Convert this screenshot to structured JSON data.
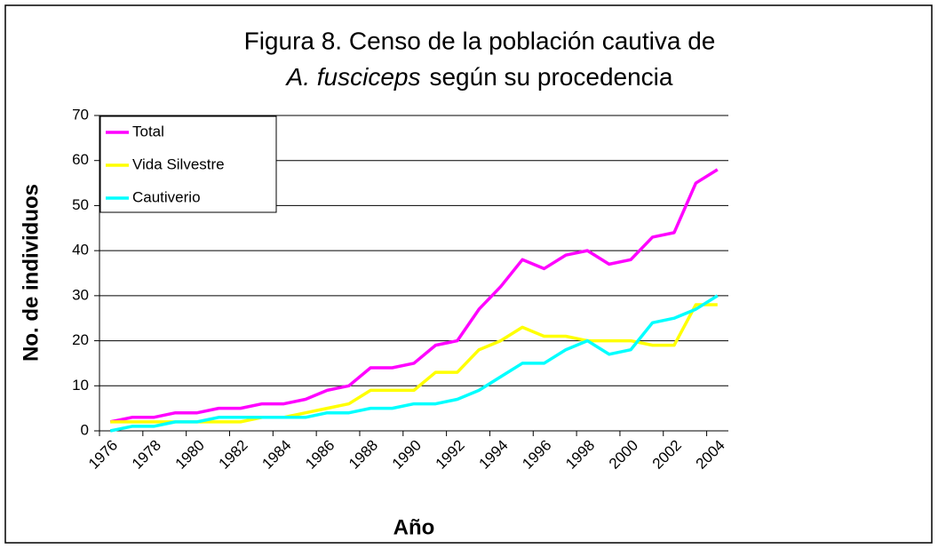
{
  "chart_data": {
    "type": "line",
    "title_lines": [
      "Figura 8. Censo de la población cautiva de",
      "A. fusciceps",
      "según su procedencia"
    ],
    "x_label": "Año",
    "y_label": "No. de individuos",
    "categories": [
      "1976",
      null,
      "1978",
      null,
      "1980",
      null,
      "1982",
      null,
      "1984",
      null,
      "1986",
      null,
      "1988",
      null,
      "1990",
      null,
      "1992",
      null,
      "1994",
      null,
      "1996",
      null,
      "1998",
      null,
      "2000",
      null,
      "2002",
      null,
      "2004"
    ],
    "series": [
      {
        "name": "Total",
        "color": "#ff00ff",
        "values": [
          2,
          3,
          3,
          4,
          4,
          5,
          5,
          6,
          6,
          7,
          9,
          10,
          14,
          14,
          15,
          19,
          20,
          27,
          32,
          38,
          36,
          39,
          40,
          37,
          38,
          43,
          44,
          55,
          58
        ]
      },
      {
        "name": "Vida Silvestre",
        "color": "#ffff00",
        "values": [
          2,
          2,
          2,
          2,
          2,
          2,
          2,
          3,
          3,
          4,
          5,
          6,
          9,
          9,
          9,
          13,
          13,
          18,
          20,
          23,
          21,
          21,
          20,
          20,
          20,
          19,
          19,
          28,
          28
        ]
      },
      {
        "name": "Cautiverio",
        "color": "#00ffff",
        "values": [
          0,
          1,
          1,
          2,
          2,
          3,
          3,
          3,
          3,
          3,
          4,
          4,
          5,
          5,
          6,
          6,
          7,
          9,
          12,
          15,
          15,
          18,
          20,
          17,
          18,
          24,
          25,
          27,
          30
        ]
      }
    ],
    "ylim": [
      0,
      70
    ],
    "yticks": [
      0,
      10,
      20,
      30,
      40,
      50,
      60,
      70
    ],
    "grid": true,
    "legend": "upper-left"
  }
}
